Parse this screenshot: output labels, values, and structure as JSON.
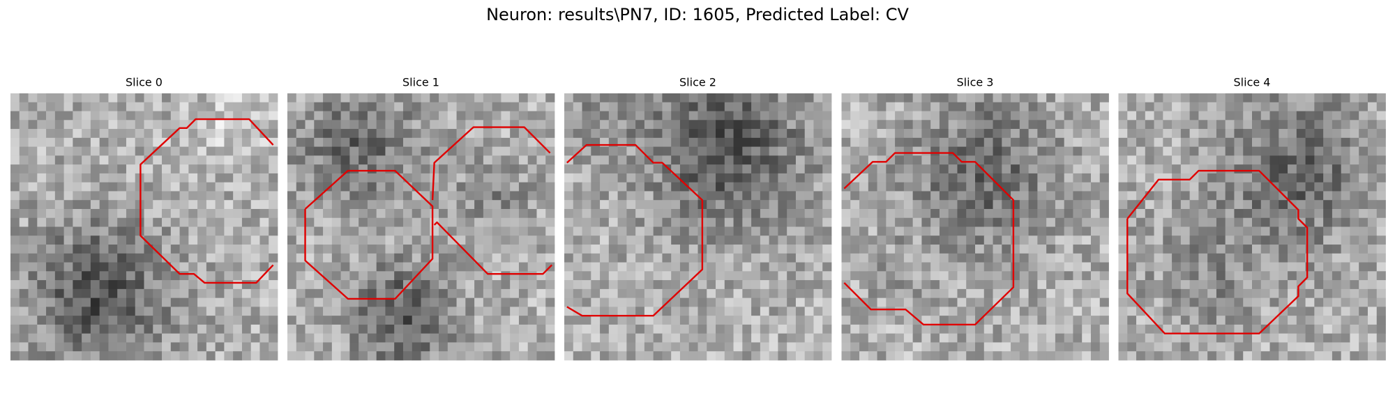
{
  "title": "Neuron: results\\PN7, ID: 1605, Predicted Label: CV",
  "panels": [
    {
      "title": "Slice 0"
    },
    {
      "title": "Slice 1"
    },
    {
      "title": "Slice 2"
    },
    {
      "title": "Slice 3"
    },
    {
      "title": "Slice 4"
    }
  ]
}
